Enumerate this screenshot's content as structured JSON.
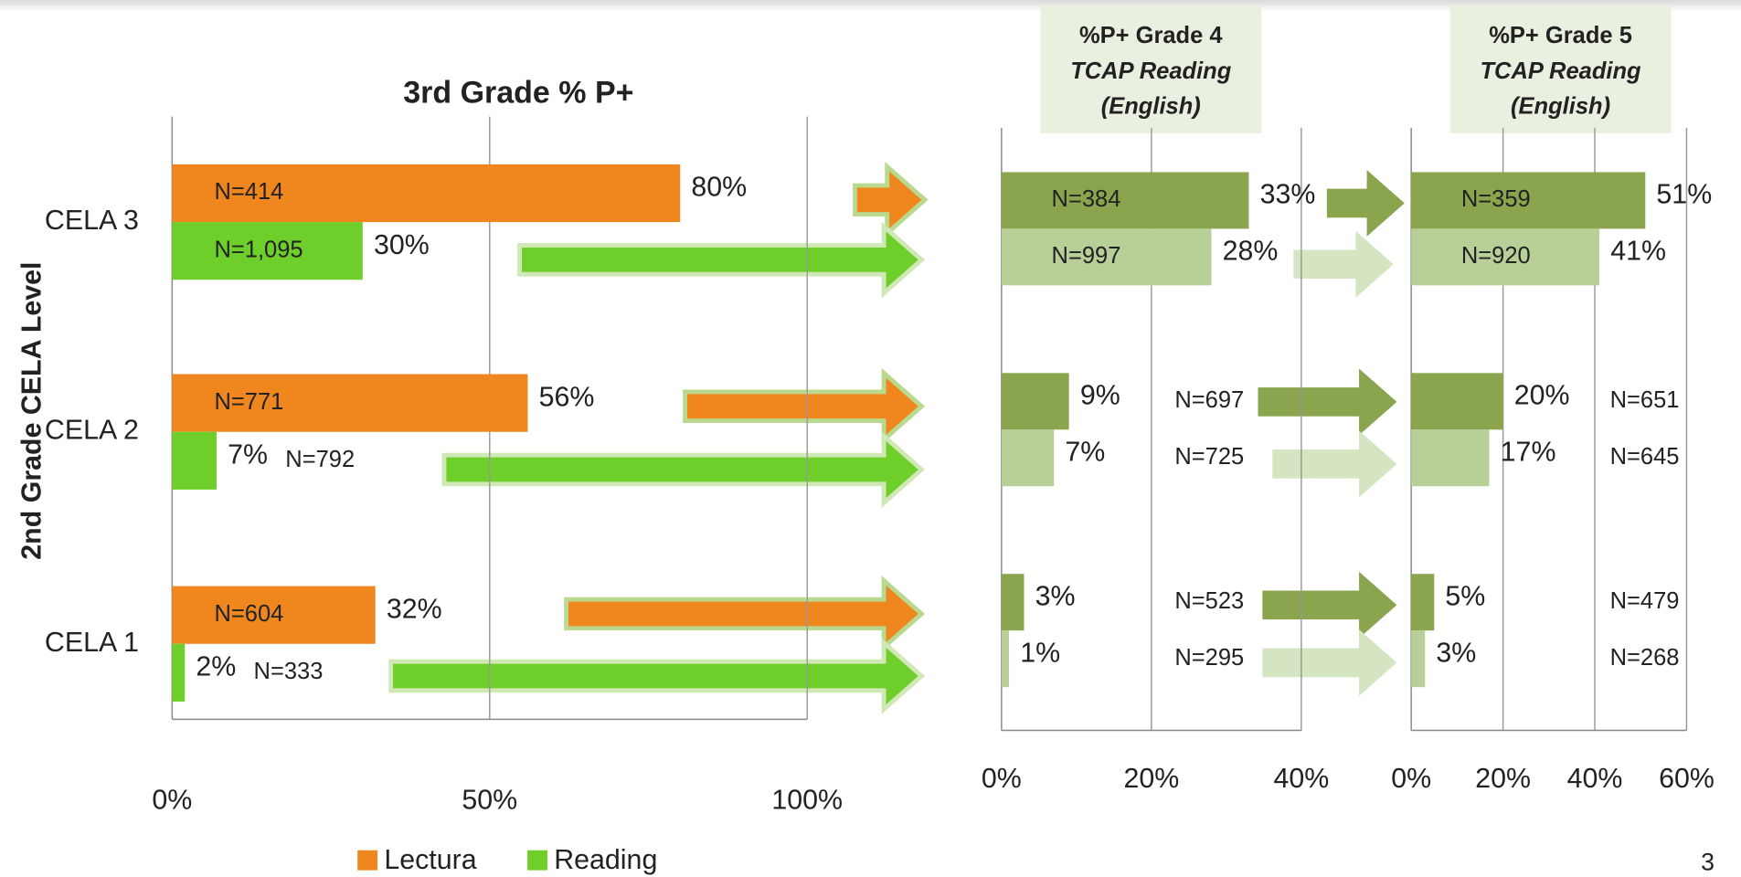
{
  "chart_data": [
    {
      "type": "bar",
      "title": "3rd Grade % P+",
      "ylabel": "2nd Grade CELA Level",
      "categories": [
        "CELA 3",
        "CELA 2",
        "CELA 1"
      ],
      "series": [
        {
          "name": "Lectura",
          "color": "#f0861e",
          "values": [
            80,
            56,
            32
          ],
          "value_labels": [
            "80%",
            "56%",
            "32%"
          ],
          "n_labels": [
            "N=414",
            "N=771",
            "N=604"
          ]
        },
        {
          "name": "Reading",
          "color": "#6fcf2a",
          "values": [
            30,
            7,
            2
          ],
          "value_labels": [
            "30%",
            "7%",
            "2%"
          ],
          "n_labels": [
            "N=1,095",
            "N=792",
            "N=333"
          ]
        }
      ],
      "xlim": [
        0,
        100
      ],
      "xticks": [
        {
          "value": 0,
          "label": "0%"
        },
        {
          "value": 50,
          "label": "50%"
        },
        {
          "value": 100,
          "label": "100%"
        }
      ],
      "grid": true,
      "legend": "bottom"
    },
    {
      "type": "bar",
      "title_lines": [
        "%P+ Grade 4",
        "TCAP Reading",
        "(English)"
      ],
      "series": [
        {
          "color": "#8aa54e",
          "values": [
            33,
            9,
            3
          ],
          "value_labels": [
            "33%",
            "9%",
            "3%"
          ],
          "n_labels": [
            "N=384",
            "N=697",
            "N=523"
          ]
        },
        {
          "color": "#b8cf98",
          "values": [
            28,
            7,
            1
          ],
          "value_labels": [
            "28%",
            "7%",
            "1%"
          ],
          "n_labels": [
            "N=997",
            "N=725",
            "N=295"
          ]
        }
      ],
      "xlim": [
        0,
        40
      ],
      "xticks": [
        {
          "value": 0,
          "label": "0%"
        },
        {
          "value": 20,
          "label": "20%"
        },
        {
          "value": 40,
          "label": "40%"
        }
      ],
      "grid": true
    },
    {
      "type": "bar",
      "title_lines": [
        "%P+ Grade 5",
        "TCAP Reading",
        "(English)"
      ],
      "series": [
        {
          "color": "#8aa54e",
          "values": [
            51,
            20,
            5
          ],
          "value_labels": [
            "51%",
            "20%",
            "5%"
          ],
          "n_labels": [
            "N=359",
            "N=651",
            "N=479"
          ]
        },
        {
          "color": "#b8cf98",
          "values": [
            41,
            17,
            3
          ],
          "value_labels": [
            "41%",
            "17%",
            "3%"
          ],
          "n_labels": [
            "N=920",
            "N=645",
            "N=268"
          ]
        }
      ],
      "xlim": [
        0,
        60
      ],
      "xticks": [
        {
          "value": 0,
          "label": "0%"
        },
        {
          "value": 20,
          "label": "20%"
        },
        {
          "value": 40,
          "label": "40%"
        },
        {
          "value": 60,
          "label": "60%"
        }
      ],
      "grid": true
    }
  ],
  "page_number": "3"
}
